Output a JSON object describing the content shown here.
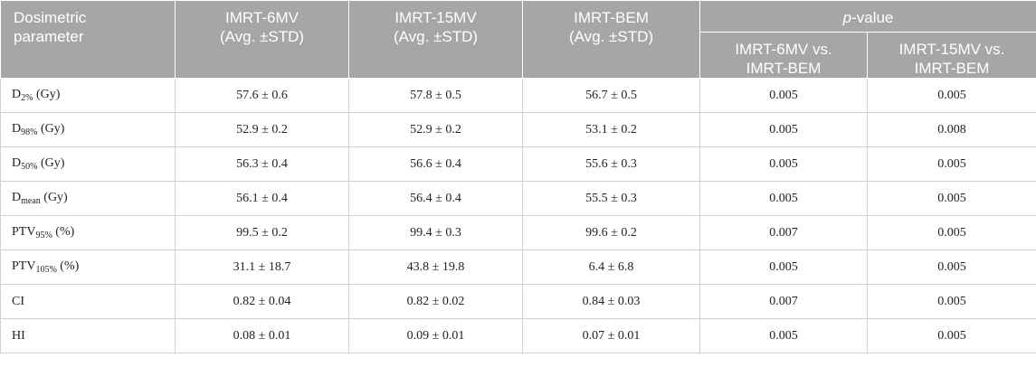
{
  "table": {
    "header": {
      "parameter": [
        "Dosimetric",
        "parameter"
      ],
      "columns": [
        [
          "IMRT-6MV",
          "(Avg. ±STD)"
        ],
        [
          "IMRT-15MV",
          "(Avg. ±STD)"
        ],
        [
          "IMRT-BEM",
          "(Avg. ±STD)"
        ]
      ],
      "pvalue": {
        "italic": "p",
        "rest": "-value"
      },
      "subcolumns": [
        [
          "IMRT-6MV vs.",
          "IMRT-BEM"
        ],
        [
          "IMRT-15MV vs.",
          "IMRT-BEM"
        ]
      ]
    },
    "rows": [
      {
        "label": {
          "base": "D",
          "sub": "2%",
          "unit": "(Gy)"
        },
        "cells": [
          "57.6 ± 0.6",
          "57.8 ± 0.5",
          "56.7 ± 0.5",
          "0.005",
          "0.005"
        ]
      },
      {
        "label": {
          "base": "D",
          "sub": "98%",
          "unit": "(Gy)"
        },
        "cells": [
          "52.9 ± 0.2",
          "52.9 ± 0.2",
          "53.1 ± 0.2",
          "0.005",
          "0.008"
        ]
      },
      {
        "label": {
          "base": "D",
          "sub": "50%",
          "unit": "(Gy)"
        },
        "cells": [
          "56.3 ± 0.4",
          "56.6 ± 0.4",
          "55.6 ± 0.3",
          "0.005",
          "0.005"
        ]
      },
      {
        "label": {
          "base": "D",
          "sub": "mean",
          "unit": "(Gy)"
        },
        "cells": [
          "56.1 ± 0.4",
          "56.4 ± 0.4",
          "55.5 ± 0.3",
          "0.005",
          "0.005"
        ]
      },
      {
        "label": {
          "base": "PTV",
          "sub": "95%",
          "unit": "(%)"
        },
        "cells": [
          "99.5 ± 0.2",
          "99.4 ± 0.3",
          "99.6 ± 0.2",
          "0.007",
          "0.005"
        ]
      },
      {
        "label": {
          "base": "PTV",
          "sub": "105%",
          "unit": "(%)"
        },
        "cells": [
          "31.1 ± 18.7",
          "43.8 ± 19.8",
          "6.4 ± 6.8",
          "0.005",
          "0.005"
        ]
      },
      {
        "label": {
          "base": "CI"
        },
        "cells": [
          "0.82 ± 0.04",
          "0.82 ± 0.02",
          "0.84 ± 0.03",
          "0.007",
          "0.005"
        ]
      },
      {
        "label": {
          "base": "HI"
        },
        "cells": [
          "0.08 ± 0.01",
          "0.09 ± 0.01",
          "0.07 ± 0.01",
          "0.005",
          "0.005"
        ]
      }
    ]
  }
}
